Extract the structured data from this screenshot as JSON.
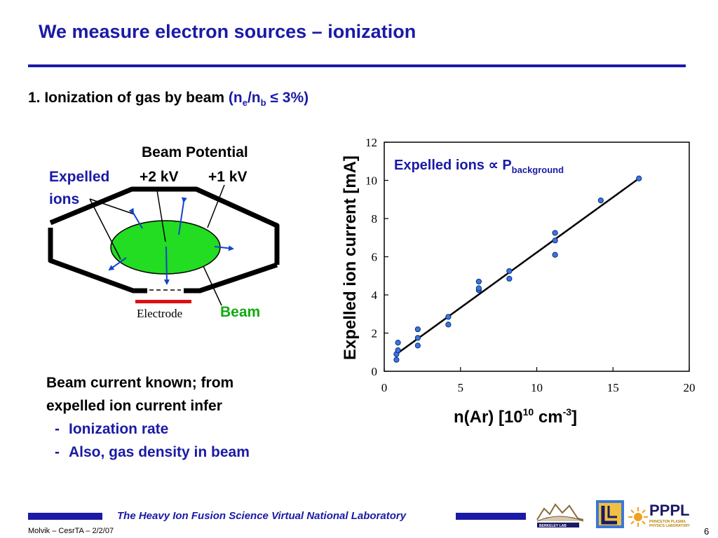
{
  "slide": {
    "title": "We measure electron sources – ionization",
    "point1": {
      "prefix": "1. Ionization of gas by beam ",
      "paren_open": "(n",
      "sub_e": "e",
      "slash_n": "/n",
      "sub_b": "b",
      "rest": " ≤ 3%)"
    }
  },
  "diagram": {
    "beam_potential": "Beam Potential",
    "plus2kv": "+2 kV",
    "plus1kv": "+1 kV",
    "expelled_line1": "Expelled",
    "expelled_line2": "ions",
    "beam_label": "Beam",
    "electrode_label": "Electrode",
    "colors": {
      "beam_fill": "#22dd22",
      "arrow": "#1144cc",
      "electrode": "#dd1111"
    }
  },
  "bottom": {
    "line1": "Beam current known; from",
    "line2": "expelled ion current infer",
    "items": [
      {
        "dash": "-",
        "text": "Ionization rate"
      },
      {
        "dash": "-",
        "text": "Also, gas density in beam"
      }
    ]
  },
  "chart_data": {
    "type": "scatter",
    "annotation": {
      "main": "Expelled ions ∝ P",
      "sub": "background"
    },
    "ylabel": "Expelled ion current [mA]",
    "xlabel_parts": {
      "a": "n(Ar) [10",
      "sup1": "10",
      "b": " cm",
      "sup2": "-3",
      "c": "]"
    },
    "xlim": [
      0,
      20
    ],
    "ylim": [
      0,
      12
    ],
    "x_ticks": [
      "0",
      "5",
      "10",
      "15",
      "20"
    ],
    "y_ticks": [
      "0",
      "2",
      "4",
      "6",
      "8",
      "10",
      "12"
    ],
    "grid": false,
    "points": [
      {
        "x": 0.8,
        "y": 0.6
      },
      {
        "x": 0.8,
        "y": 0.9
      },
      {
        "x": 0.9,
        "y": 1.1
      },
      {
        "x": 0.9,
        "y": 1.5
      },
      {
        "x": 2.2,
        "y": 1.35
      },
      {
        "x": 2.2,
        "y": 1.75
      },
      {
        "x": 2.2,
        "y": 2.2
      },
      {
        "x": 4.2,
        "y": 2.45
      },
      {
        "x": 4.2,
        "y": 2.85
      },
      {
        "x": 6.2,
        "y": 4.25
      },
      {
        "x": 6.2,
        "y": 4.35
      },
      {
        "x": 6.2,
        "y": 4.7
      },
      {
        "x": 8.2,
        "y": 4.85
      },
      {
        "x": 8.2,
        "y": 5.25
      },
      {
        "x": 11.2,
        "y": 6.1
      },
      {
        "x": 11.2,
        "y": 6.85
      },
      {
        "x": 11.2,
        "y": 7.25
      },
      {
        "x": 14.2,
        "y": 8.95
      },
      {
        "x": 16.7,
        "y": 10.1
      }
    ],
    "fit_line": [
      {
        "x": 0.8,
        "y": 0.9
      },
      {
        "x": 16.7,
        "y": 10.1
      }
    ],
    "colors": {
      "marker": "#3a78d8",
      "marker_edge": "#0a2a80",
      "line": "#000000",
      "annotation": "#1a1aa6"
    }
  },
  "footer": {
    "lab": "The Heavy Ion Fusion Science Virtual National Laboratory",
    "author": "Molvik – CesrTA – 2/2/07",
    "page": "6",
    "logos": {
      "berkeley": "BERKELEY LAB",
      "pppl": "PPPL",
      "pppl_sub": "PRINCETON PLASMA PHYSICS LABORATORY"
    }
  }
}
